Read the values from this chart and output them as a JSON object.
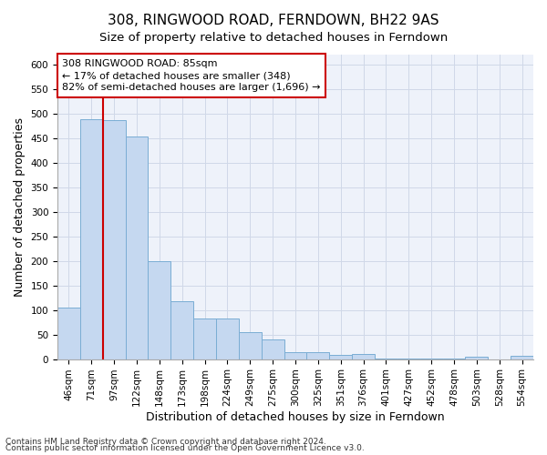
{
  "title": "308, RINGWOOD ROAD, FERNDOWN, BH22 9AS",
  "subtitle": "Size of property relative to detached houses in Ferndown",
  "xlabel": "Distribution of detached houses by size in Ferndown",
  "ylabel": "Number of detached properties",
  "categories": [
    "46sqm",
    "71sqm",
    "97sqm",
    "122sqm",
    "148sqm",
    "173sqm",
    "198sqm",
    "224sqm",
    "249sqm",
    "275sqm",
    "300sqm",
    "325sqm",
    "351sqm",
    "376sqm",
    "401sqm",
    "427sqm",
    "452sqm",
    "478sqm",
    "503sqm",
    "528sqm",
    "554sqm"
  ],
  "values": [
    105,
    488,
    487,
    453,
    200,
    118,
    82,
    82,
    55,
    40,
    14,
    14,
    9,
    10,
    2,
    2,
    2,
    2,
    5,
    0,
    6
  ],
  "bar_color": "#c5d8f0",
  "bar_edge_color": "#7aadd4",
  "annotation_line1": "308 RINGWOOD ROAD: 85sqm",
  "annotation_line2": "← 17% of detached houses are smaller (348)",
  "annotation_line3": "82% of semi-detached houses are larger (1,696) →",
  "annotation_box_color": "#ffffff",
  "annotation_box_edge": "#cc0000",
  "vline_color": "#cc0000",
  "vline_x_index": 1.5,
  "ylim": [
    0,
    620
  ],
  "yticks": [
    0,
    50,
    100,
    150,
    200,
    250,
    300,
    350,
    400,
    450,
    500,
    550,
    600
  ],
  "footnote1": "Contains HM Land Registry data © Crown copyright and database right 2024.",
  "footnote2": "Contains public sector information licensed under the Open Government Licence v3.0.",
  "title_fontsize": 11,
  "subtitle_fontsize": 9.5,
  "label_fontsize": 9,
  "tick_fontsize": 7.5,
  "annot_fontsize": 8,
  "footnote_fontsize": 6.5,
  "grid_color": "#d0d8e8",
  "bg_color": "#eef2fa"
}
